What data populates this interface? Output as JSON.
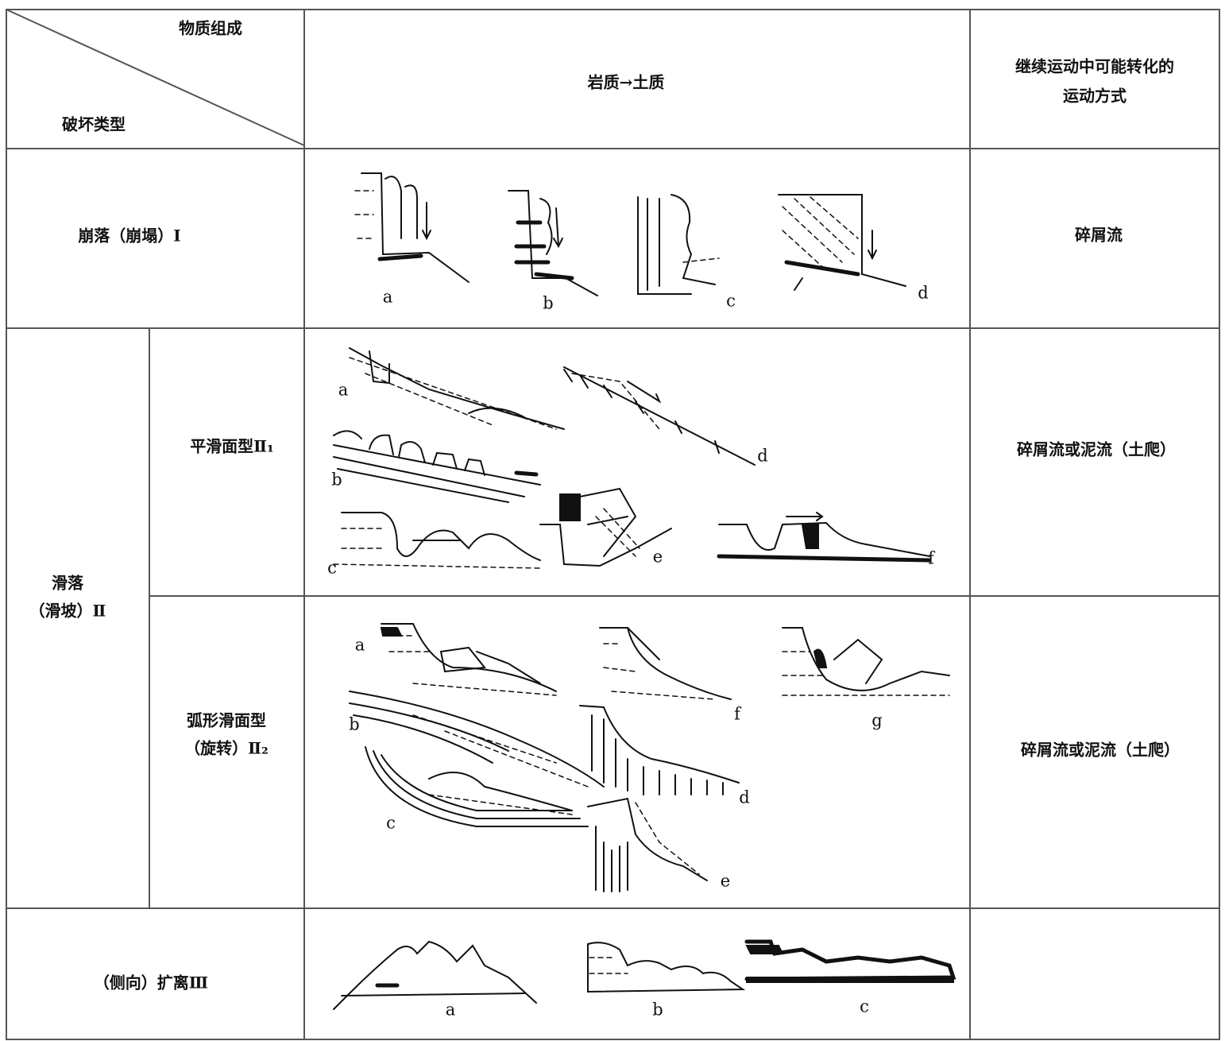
{
  "header": {
    "top_right": "物质组成",
    "bottom_left": "破坏类型",
    "material": "岩质→土质",
    "transform": [
      "继续运动中可能转化的",
      "运动方式"
    ]
  },
  "rows": [
    {
      "type": "崩落（崩塌）Ⅰ",
      "figure_labels": [
        "a",
        "b",
        "c",
        "d"
      ],
      "transform": "碎屑流"
    },
    {
      "type": [
        "滑落",
        "（滑坡）Ⅱ"
      ],
      "subrows": [
        {
          "subtype": "平滑面型Ⅱ₁",
          "figure_labels": [
            "a",
            "b",
            "c",
            "d",
            "e",
            "f"
          ],
          "transform": "碎屑流或泥流（土爬）"
        },
        {
          "subtype": [
            "弧形滑面型",
            "（旋转）Ⅱ₂"
          ],
          "figure_labels": [
            "a",
            "b",
            "c",
            "d",
            "e",
            "f",
            "g"
          ],
          "transform": "碎屑流或泥流（土爬）"
        }
      ]
    },
    {
      "type": "（侧向）扩离Ⅲ",
      "figure_labels": [
        "a",
        "b",
        "c"
      ]
    }
  ]
}
